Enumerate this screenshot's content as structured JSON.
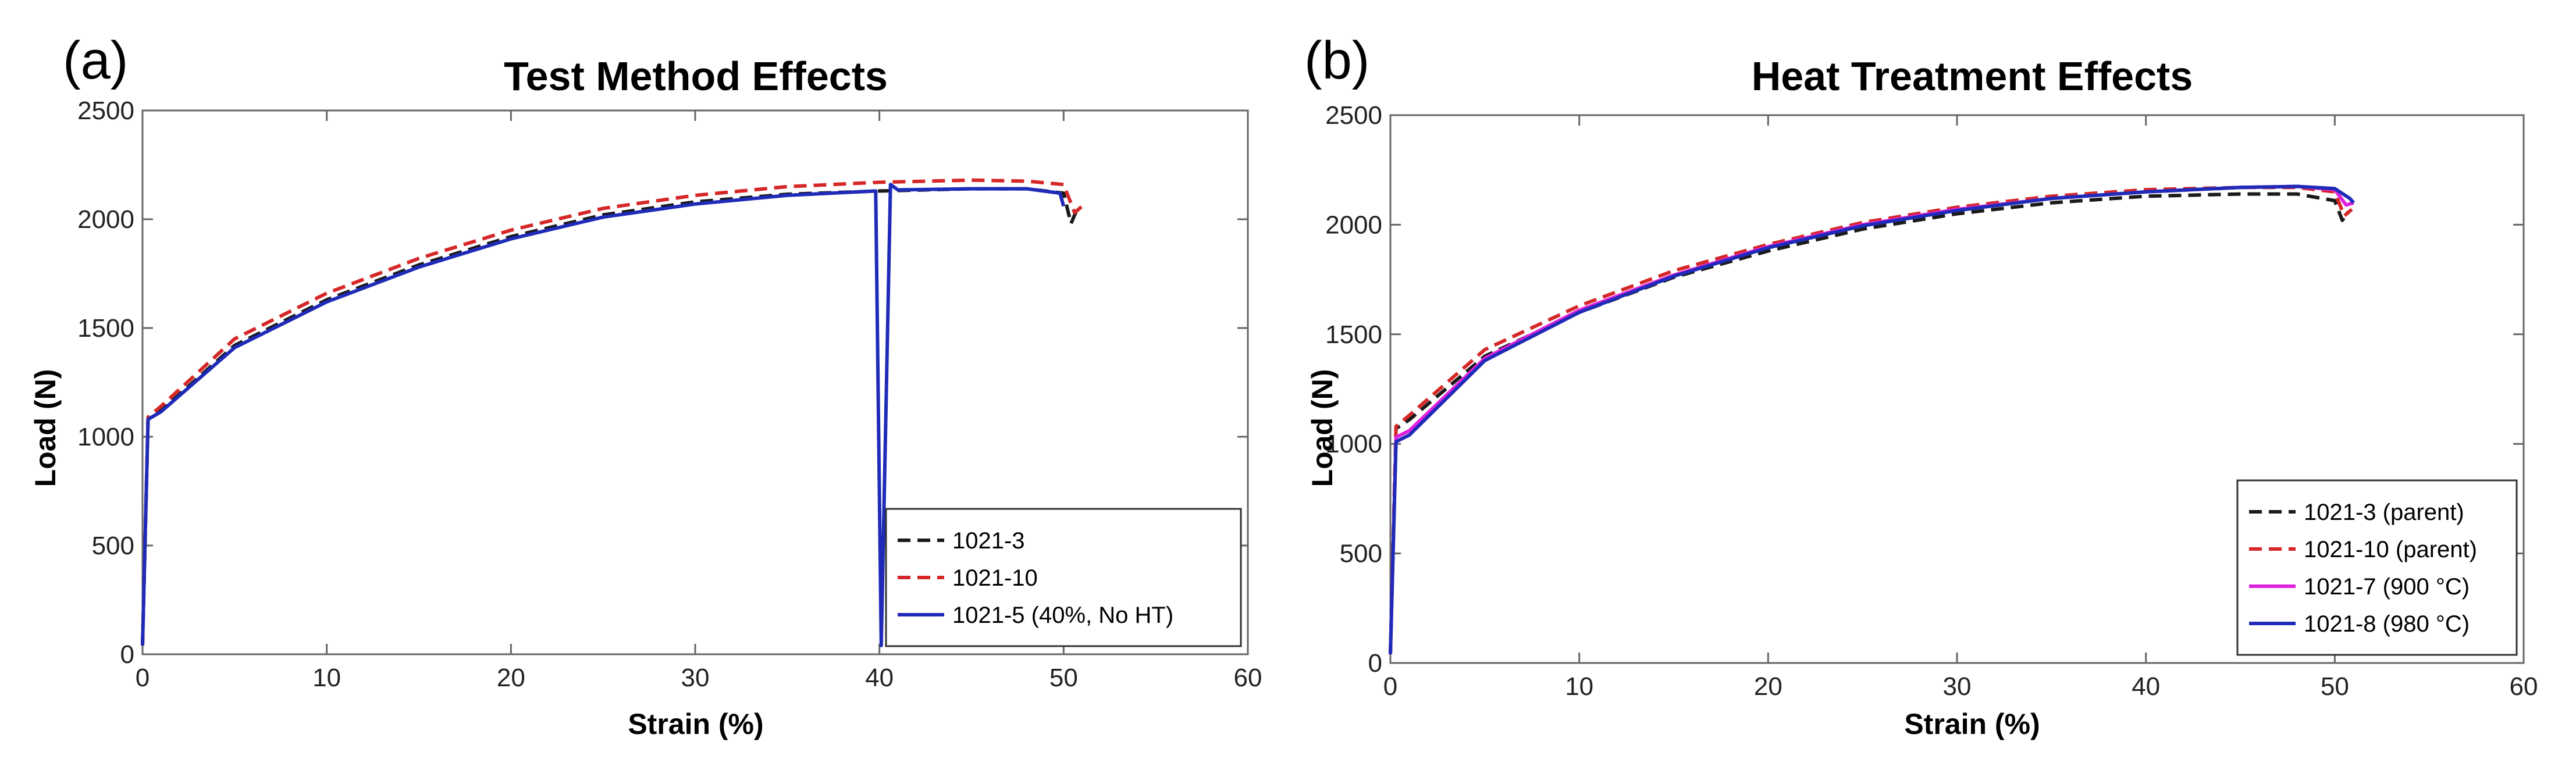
{
  "panels": [
    {
      "label": "(a)",
      "chart_data": {
        "type": "line",
        "title": "Test Method Effects",
        "xlabel": "Strain (%)",
        "ylabel": "Load (N)",
        "xlim": [
          0,
          60
        ],
        "ylim": [
          0,
          2500
        ],
        "xticks": [
          "0",
          "10",
          "20",
          "30",
          "40",
          "50",
          "60"
        ],
        "yticks": [
          "0",
          "500",
          "1000",
          "1500",
          "2000",
          "2500"
        ],
        "legend_position": "bottom-right",
        "series": [
          {
            "name": "1021-3",
            "color": "#1a1a1a",
            "style": "dashed",
            "points": [
              [
                0,
                40
              ],
              [
                0.3,
                1080
              ],
              [
                1,
                1120
              ],
              [
                5,
                1420
              ],
              [
                10,
                1630
              ],
              [
                15,
                1790
              ],
              [
                20,
                1920
              ],
              [
                25,
                2020
              ],
              [
                30,
                2080
              ],
              [
                35,
                2115
              ],
              [
                40,
                2130
              ],
              [
                45,
                2140
              ],
              [
                48,
                2140
              ],
              [
                50,
                2120
              ],
              [
                50.4,
                1980
              ],
              [
                50.7,
                2040
              ]
            ]
          },
          {
            "name": "1021-10",
            "color": "#d62728",
            "style": "dashed",
            "points": [
              [
                0,
                40
              ],
              [
                0.3,
                1090
              ],
              [
                1,
                1140
              ],
              [
                5,
                1450
              ],
              [
                10,
                1660
              ],
              [
                15,
                1820
              ],
              [
                20,
                1950
              ],
              [
                25,
                2050
              ],
              [
                30,
                2110
              ],
              [
                35,
                2150
              ],
              [
                40,
                2170
              ],
              [
                45,
                2180
              ],
              [
                48,
                2175
              ],
              [
                50,
                2160
              ],
              [
                50.6,
                2030
              ],
              [
                51,
                2060
              ]
            ]
          },
          {
            "name": "1021-5 (40%, No HT)",
            "color": "#1f2bb8",
            "style": "solid",
            "points": [
              [
                0,
                40
              ],
              [
                0.3,
                1080
              ],
              [
                1,
                1115
              ],
              [
                5,
                1410
              ],
              [
                10,
                1620
              ],
              [
                15,
                1780
              ],
              [
                20,
                1910
              ],
              [
                25,
                2010
              ],
              [
                30,
                2070
              ],
              [
                35,
                2110
              ],
              [
                39.8,
                2130
              ],
              [
                40.1,
                40
              ],
              [
                40.6,
                2160
              ],
              [
                41,
                2135
              ],
              [
                45,
                2140
              ],
              [
                48,
                2140
              ],
              [
                49.8,
                2120
              ],
              [
                50,
                2060
              ]
            ]
          }
        ]
      }
    },
    {
      "label": "(b)",
      "chart_data": {
        "type": "line",
        "title": "Heat Treatment Effects",
        "xlabel": "Strain (%)",
        "ylabel": "Load (N)",
        "xlim": [
          0,
          60
        ],
        "ylim": [
          0,
          2500
        ],
        "xticks": [
          "0",
          "10",
          "20",
          "30",
          "40",
          "50",
          "60"
        ],
        "yticks": [
          "0",
          "500",
          "1000",
          "1500",
          "2000",
          "2500"
        ],
        "legend_position": "bottom-right",
        "series": [
          {
            "name": "1021-3 (parent)",
            "color": "#1a1a1a",
            "style": "dashed",
            "points": [
              [
                0,
                40
              ],
              [
                0.3,
                1070
              ],
              [
                1,
                1110
              ],
              [
                5,
                1400
              ],
              [
                10,
                1600
              ],
              [
                15,
                1760
              ],
              [
                20,
                1880
              ],
              [
                25,
                1980
              ],
              [
                30,
                2050
              ],
              [
                35,
                2100
              ],
              [
                40,
                2130
              ],
              [
                45,
                2140
              ],
              [
                48,
                2140
              ],
              [
                50,
                2110
              ],
              [
                50.4,
                2020
              ],
              [
                50.7,
                2060
              ]
            ]
          },
          {
            "name": "1021-10 (parent)",
            "color": "#d62728",
            "style": "dashed",
            "points": [
              [
                0,
                40
              ],
              [
                0.3,
                1080
              ],
              [
                1,
                1130
              ],
              [
                5,
                1430
              ],
              [
                10,
                1630
              ],
              [
                15,
                1790
              ],
              [
                20,
                1910
              ],
              [
                25,
                2010
              ],
              [
                30,
                2080
              ],
              [
                35,
                2130
              ],
              [
                40,
                2160
              ],
              [
                45,
                2170
              ],
              [
                48,
                2170
              ],
              [
                50,
                2150
              ],
              [
                50.5,
                2040
              ],
              [
                50.9,
                2070
              ]
            ]
          },
          {
            "name": "1021-7 (900 °C)",
            "color": "#e020e0",
            "style": "solid",
            "points": [
              [
                0,
                40
              ],
              [
                0.3,
                1030
              ],
              [
                1,
                1060
              ],
              [
                5,
                1390
              ],
              [
                10,
                1610
              ],
              [
                15,
                1770
              ],
              [
                20,
                1900
              ],
              [
                25,
                2000
              ],
              [
                30,
                2070
              ],
              [
                35,
                2120
              ],
              [
                40,
                2150
              ],
              [
                45,
                2170
              ],
              [
                48,
                2175
              ],
              [
                50,
                2160
              ],
              [
                50.6,
                2090
              ],
              [
                51,
                2100
              ]
            ]
          },
          {
            "name": "1021-8 (980 °C)",
            "color": "#1f2bb8",
            "style": "solid",
            "points": [
              [
                0,
                40
              ],
              [
                0.3,
                1010
              ],
              [
                1,
                1040
              ],
              [
                5,
                1380
              ],
              [
                10,
                1600
              ],
              [
                15,
                1765
              ],
              [
                20,
                1895
              ],
              [
                25,
                1995
              ],
              [
                30,
                2065
              ],
              [
                35,
                2120
              ],
              [
                40,
                2150
              ],
              [
                45,
                2170
              ],
              [
                48,
                2175
              ],
              [
                50,
                2165
              ],
              [
                50.8,
                2120
              ],
              [
                51,
                2100
              ]
            ]
          }
        ]
      }
    }
  ]
}
